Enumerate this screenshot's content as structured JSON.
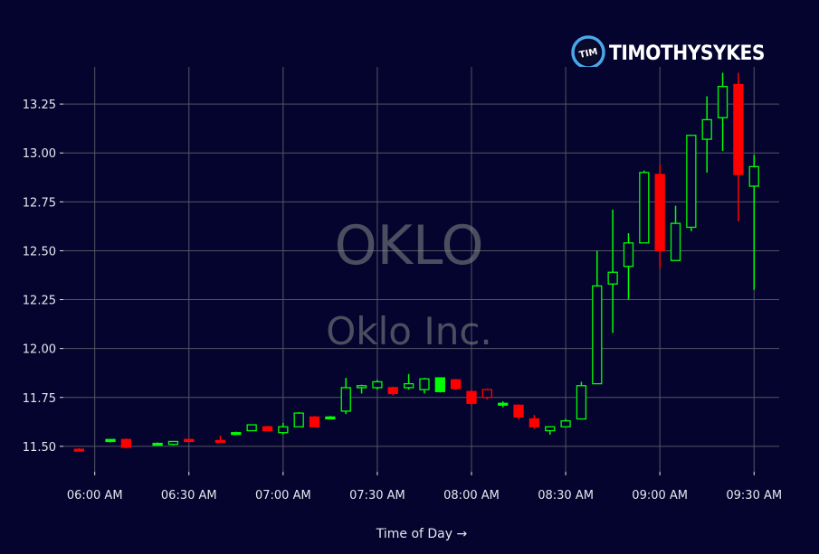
{
  "brand": {
    "logo_mark": "TIM",
    "name": "TIMOTHYSYKES",
    "accent_color": "#4aa8e8"
  },
  "watermark": {
    "ticker": "OKLO",
    "company": "Oklo Inc."
  },
  "colors": {
    "background": "#04042e",
    "up": "#00ff00",
    "down": "#ff0000",
    "grid": "#555566",
    "text": "#e6e6ee"
  },
  "chart_data": {
    "type": "candlestick",
    "title": "",
    "xlabel": "Time of Day →",
    "ylabel": "",
    "ylim": [
      11.37,
      13.44
    ],
    "grid": true,
    "y_ticks": [
      11.5,
      11.75,
      12.0,
      12.25,
      12.5,
      12.75,
      13.0,
      13.25
    ],
    "y_tick_labels": [
      "11.50",
      "11.75",
      "12.00",
      "12.25",
      "12.50",
      "12.75",
      "13.00",
      "13.25"
    ],
    "x_ticks": [
      "06:00",
      "06:30",
      "07:00",
      "07:30",
      "08:00",
      "08:30",
      "09:00",
      "09:30"
    ],
    "x_tick_labels": [
      "06:00 AM",
      "06:30 AM",
      "07:00 AM",
      "07:30 AM",
      "08:00 AM",
      "08:30 AM",
      "09:00 AM",
      "09:30 AM"
    ],
    "x_range": [
      "05:50",
      "09:38"
    ],
    "candles": [
      {
        "t": "05:55",
        "o": 11.485,
        "h": 11.49,
        "l": 11.48,
        "c": 11.48,
        "fill": true
      },
      {
        "t": "06:05",
        "o": 11.525,
        "h": 11.535,
        "l": 11.52,
        "c": 11.535,
        "fill": true
      },
      {
        "t": "06:10",
        "o": 11.535,
        "h": 11.54,
        "l": 11.49,
        "c": 11.495,
        "fill": true
      },
      {
        "t": "06:20",
        "o": 11.515,
        "h": 11.52,
        "l": 11.51,
        "c": 11.515,
        "fill": true
      },
      {
        "t": "06:25",
        "o": 11.51,
        "h": 11.525,
        "l": 11.505,
        "c": 11.525,
        "fill": false
      },
      {
        "t": "06:30",
        "o": 11.535,
        "h": 11.54,
        "l": 11.525,
        "c": 11.525,
        "fill": true
      },
      {
        "t": "06:40",
        "o": 11.53,
        "h": 11.555,
        "l": 11.52,
        "c": 11.525,
        "fill": true
      },
      {
        "t": "06:45",
        "o": 11.57,
        "h": 11.575,
        "l": 11.565,
        "c": 11.57,
        "fill": true
      },
      {
        "t": "06:50",
        "o": 11.58,
        "h": 11.61,
        "l": 11.58,
        "c": 11.61,
        "fill": false
      },
      {
        "t": "06:55",
        "o": 11.6,
        "h": 11.605,
        "l": 11.58,
        "c": 11.58,
        "fill": true
      },
      {
        "t": "07:00",
        "o": 11.57,
        "h": 11.62,
        "l": 11.56,
        "c": 11.6,
        "fill": false
      },
      {
        "t": "07:05",
        "o": 11.6,
        "h": 11.675,
        "l": 11.6,
        "c": 11.67,
        "fill": false
      },
      {
        "t": "07:10",
        "o": 11.65,
        "h": 11.655,
        "l": 11.6,
        "c": 11.6,
        "fill": true
      },
      {
        "t": "07:15",
        "o": 11.65,
        "h": 11.655,
        "l": 11.645,
        "c": 11.65,
        "fill": true
      },
      {
        "t": "07:20",
        "o": 11.68,
        "h": 11.85,
        "l": 11.665,
        "c": 11.8,
        "fill": false
      },
      {
        "t": "07:25",
        "o": 11.8,
        "h": 11.815,
        "l": 11.77,
        "c": 11.81,
        "fill": false
      },
      {
        "t": "07:30",
        "o": 11.8,
        "h": 11.84,
        "l": 11.79,
        "c": 11.83,
        "fill": false
      },
      {
        "t": "07:35",
        "o": 11.8,
        "h": 11.805,
        "l": 11.76,
        "c": 11.77,
        "fill": true
      },
      {
        "t": "07:40",
        "o": 11.8,
        "h": 11.87,
        "l": 11.79,
        "c": 11.82,
        "fill": false
      },
      {
        "t": "07:45",
        "o": 11.79,
        "h": 11.85,
        "l": 11.77,
        "c": 11.845,
        "fill": false
      },
      {
        "t": "07:50",
        "o": 11.78,
        "h": 11.85,
        "l": 11.775,
        "c": 11.85,
        "fill": true
      },
      {
        "t": "07:55",
        "o": 11.84,
        "h": 11.845,
        "l": 11.79,
        "c": 11.795,
        "fill": true
      },
      {
        "t": "08:00",
        "o": 11.78,
        "h": 11.785,
        "l": 11.71,
        "c": 11.72,
        "fill": true
      },
      {
        "t": "08:05",
        "o": 11.79,
        "h": 11.795,
        "l": 11.74,
        "c": 11.75,
        "fill": false
      },
      {
        "t": "08:10",
        "o": 11.72,
        "h": 11.73,
        "l": 11.7,
        "c": 11.72,
        "fill": true
      },
      {
        "t": "08:15",
        "o": 11.71,
        "h": 11.715,
        "l": 11.64,
        "c": 11.65,
        "fill": true
      },
      {
        "t": "08:20",
        "o": 11.64,
        "h": 11.66,
        "l": 11.59,
        "c": 11.6,
        "fill": true
      },
      {
        "t": "08:25",
        "o": 11.58,
        "h": 11.6,
        "l": 11.56,
        "c": 11.6,
        "fill": false
      },
      {
        "t": "08:30",
        "o": 11.6,
        "h": 11.64,
        "l": 11.6,
        "c": 11.63,
        "fill": false
      },
      {
        "t": "08:35",
        "o": 11.64,
        "h": 11.83,
        "l": 11.64,
        "c": 11.81,
        "fill": false
      },
      {
        "t": "08:40",
        "o": 11.82,
        "h": 12.5,
        "l": 11.82,
        "c": 12.32,
        "fill": false
      },
      {
        "t": "08:45",
        "o": 12.33,
        "h": 12.71,
        "l": 12.08,
        "c": 12.39,
        "fill": false
      },
      {
        "t": "08:50",
        "o": 12.42,
        "h": 12.59,
        "l": 12.25,
        "c": 12.54,
        "fill": false
      },
      {
        "t": "08:55",
        "o": 12.54,
        "h": 12.91,
        "l": 12.54,
        "c": 12.9,
        "fill": false
      },
      {
        "t": "09:00",
        "o": 12.89,
        "h": 12.94,
        "l": 12.41,
        "c": 12.5,
        "fill": true
      },
      {
        "t": "09:05",
        "o": 12.45,
        "h": 12.73,
        "l": 12.45,
        "c": 12.64,
        "fill": false
      },
      {
        "t": "09:10",
        "o": 12.62,
        "h": 13.09,
        "l": 12.6,
        "c": 13.09,
        "fill": false
      },
      {
        "t": "09:15",
        "o": 13.07,
        "h": 13.29,
        "l": 12.9,
        "c": 13.17,
        "fill": false
      },
      {
        "t": "09:20",
        "o": 13.18,
        "h": 13.41,
        "l": 13.01,
        "c": 13.34,
        "fill": false
      },
      {
        "t": "09:25",
        "o": 13.35,
        "h": 13.41,
        "l": 12.65,
        "c": 12.89,
        "fill": true
      },
      {
        "t": "09:30",
        "o": 12.83,
        "h": 12.99,
        "l": 12.3,
        "c": 12.93,
        "fill": false
      }
    ]
  }
}
